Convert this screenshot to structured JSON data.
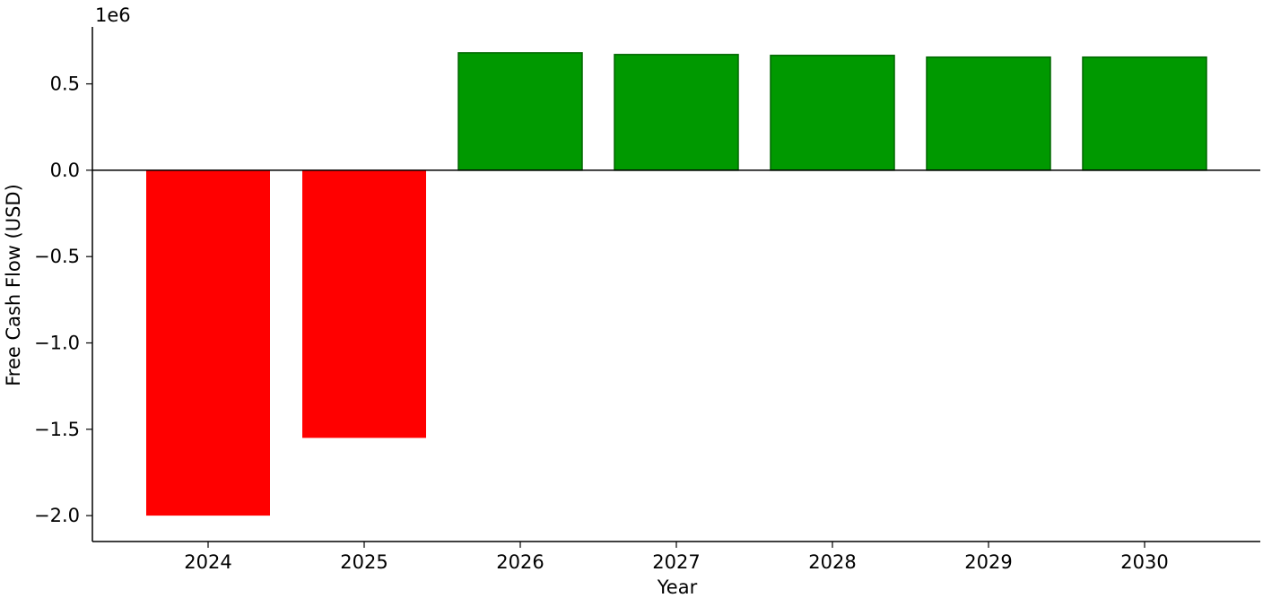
{
  "chart_data": {
    "type": "bar",
    "categories": [
      "2024",
      "2025",
      "2026",
      "2027",
      "2028",
      "2029",
      "2030"
    ],
    "values": [
      -2000000,
      -1550000,
      680000,
      670000,
      665000,
      655000,
      655000
    ],
    "bar_colors": [
      "#ff0000",
      "#ff0000",
      "#009900",
      "#009900",
      "#009900",
      "#009900",
      "#009900"
    ],
    "xlabel": "Year",
    "ylabel": "Free Cash Flow (USD)",
    "ylim": [
      -2150000,
      830000
    ],
    "yticks": [
      0.5,
      0.0,
      -0.5,
      -1.0,
      -1.5,
      -2.0
    ],
    "ytick_labels": [
      "0.5",
      "0.0",
      "−0.5",
      "−1.0",
      "−1.5",
      "−2.0"
    ],
    "offset_text": "1e6",
    "grid": false,
    "zero_line": true
  }
}
